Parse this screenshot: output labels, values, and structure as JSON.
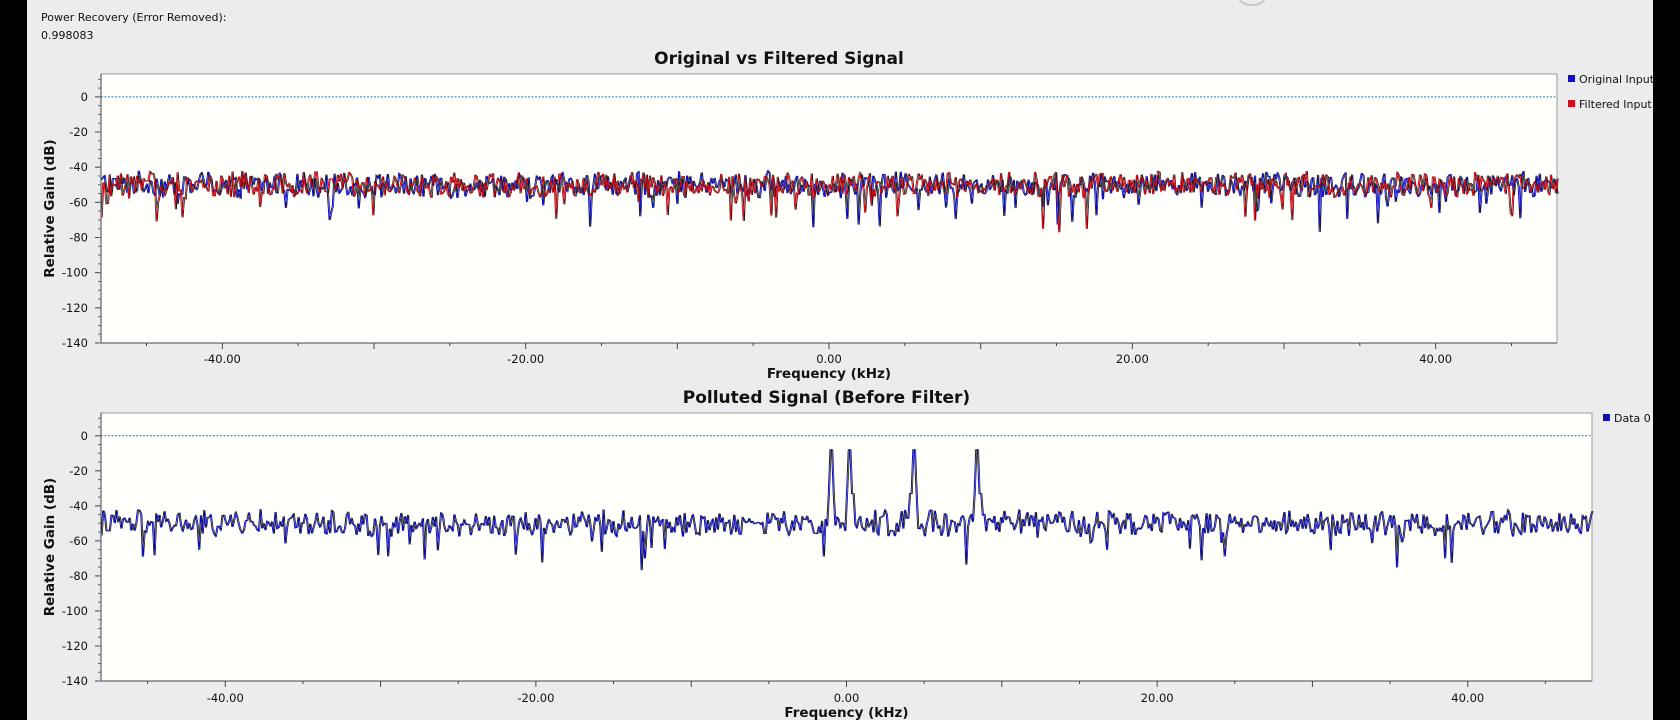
{
  "power_recovery": {
    "label": "Power Recovery (Error Removed):",
    "value": "0.998083"
  },
  "chart_data": [
    {
      "type": "line",
      "title": "Original vs Filtered Signal",
      "xlabel": "Frequency (kHz)",
      "ylabel": "Relative Gain (dB)",
      "xlim": [
        -48,
        48
      ],
      "ylim": [
        -140,
        13
      ],
      "xticks": [
        "-40.00",
        "-20.00",
        "0.00",
        "20.00",
        "40.00"
      ],
      "yticks": [
        "0",
        "-20",
        "-40",
        "-60",
        "-80",
        "-100",
        "-120",
        "-140"
      ],
      "reference_line_db": 0,
      "legend_position": "right",
      "series": [
        {
          "name": "Original Input",
          "color": "#1010c0",
          "level_db": -50,
          "spread_db": 8,
          "spurs": []
        },
        {
          "name": "Filtered Input",
          "color": "#d0101c",
          "level_db": -50,
          "spread_db": 8,
          "spurs": []
        }
      ]
    },
    {
      "type": "line",
      "title": "Polluted Signal (Before Filter)",
      "xlabel": "Frequency (kHz)",
      "ylabel": "Relative Gain (dB)",
      "xlim": [
        -48,
        48
      ],
      "ylim": [
        -140,
        13
      ],
      "xticks": [
        "-40.00",
        "-20.00",
        "0.00",
        "20.00",
        "40.00"
      ],
      "yticks": [
        "0",
        "-20",
        "-40",
        "-60",
        "-80",
        "-100",
        "-120",
        "-140"
      ],
      "reference_line_db": 0,
      "legend_position": "right",
      "series": [
        {
          "name": "Data 0",
          "color": "#1010b0",
          "level_db": -50,
          "spread_db": 8,
          "spurs": [
            {
              "x": -1.0,
              "y": -8
            },
            {
              "x": 0.2,
              "y": -8
            },
            {
              "x": 4.3,
              "y": -8
            },
            {
              "x": 8.4,
              "y": -8
            }
          ]
        }
      ]
    }
  ],
  "colors": {
    "background": "#ececee",
    "plot_bg": "#fffffb",
    "ref_line": "#1a7fc0",
    "trace_dark": "#1a1a1a"
  }
}
